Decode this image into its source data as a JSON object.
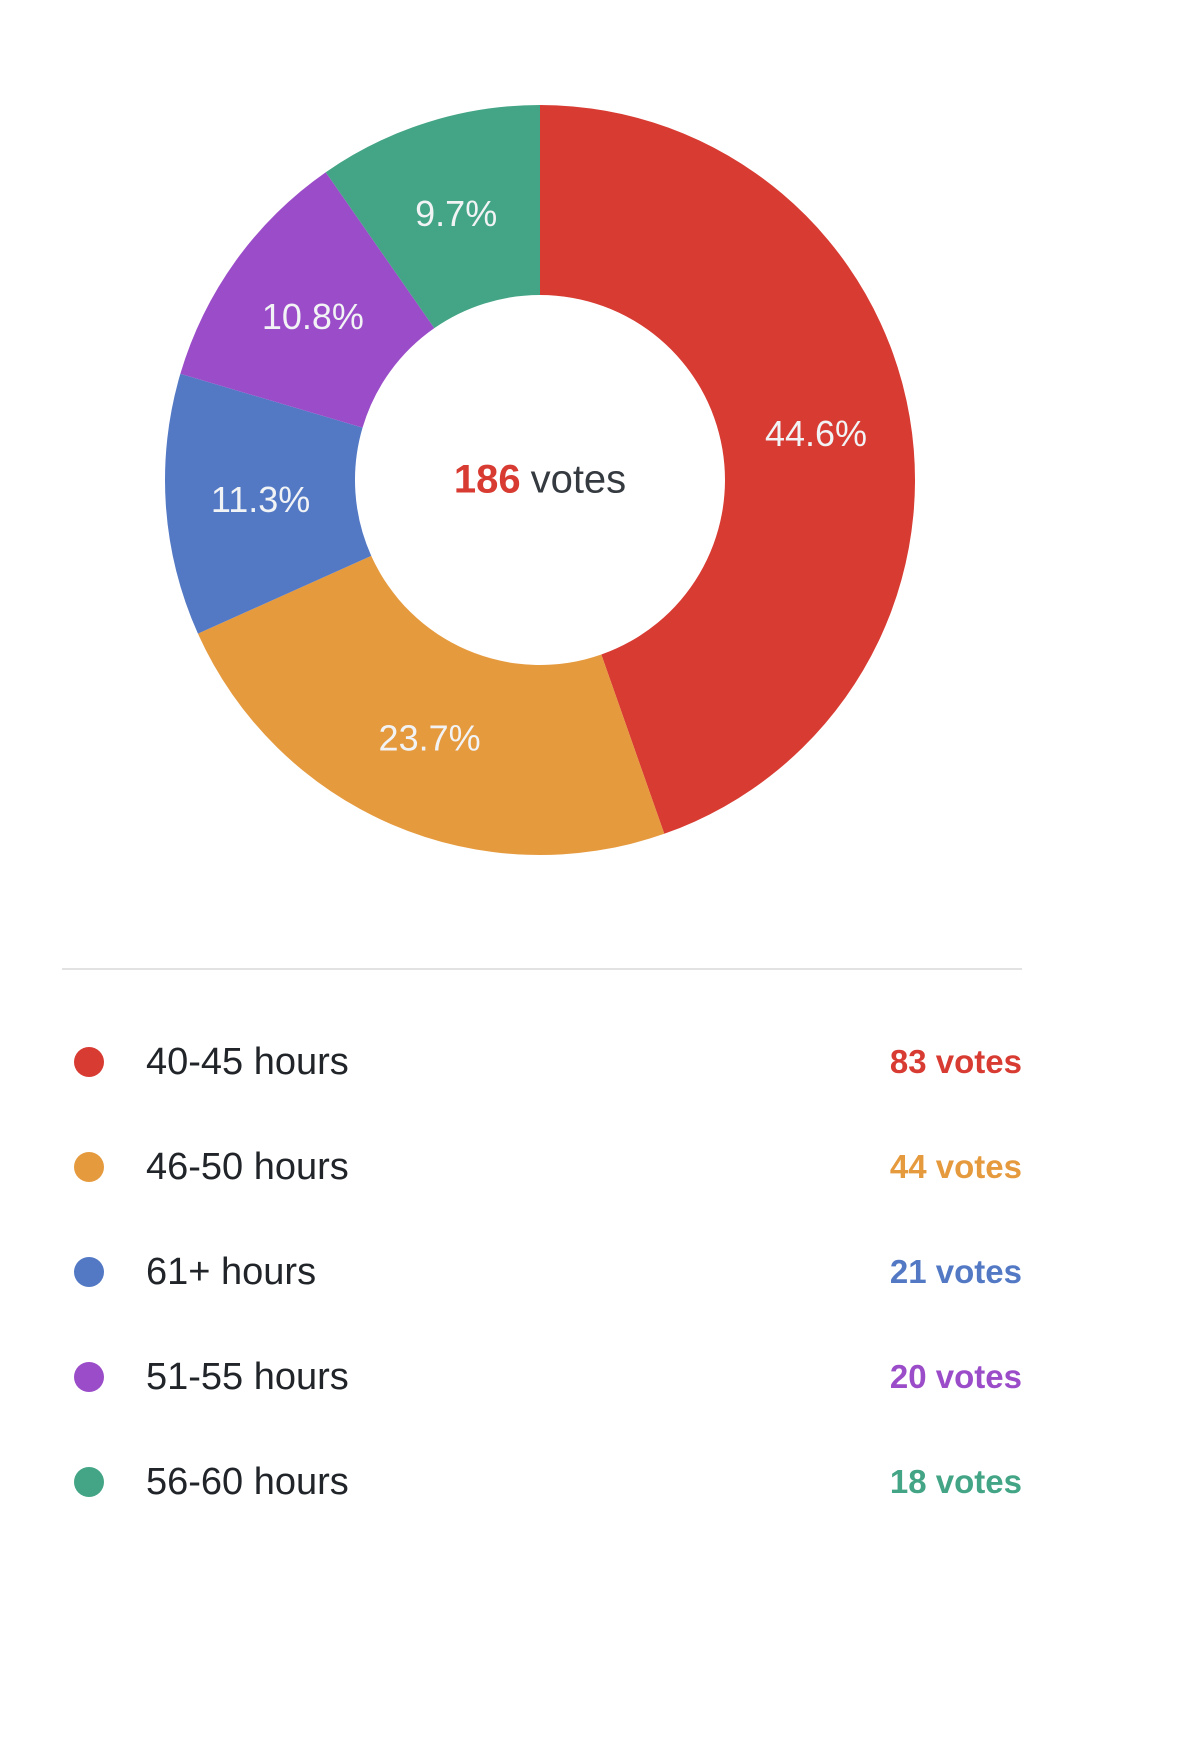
{
  "chart_data": {
    "type": "pie",
    "variant": "donut",
    "legend_position": "bottom",
    "total_votes": 186,
    "center_label": {
      "count": "186",
      "suffix": "votes",
      "count_color": "#d83b32"
    },
    "slices": [
      {
        "label": "40-45 hours",
        "votes": 83,
        "percent": 44.6,
        "percent_label": "44.6%",
        "votes_label": "83 votes",
        "color": "#d83b32"
      },
      {
        "label": "46-50 hours",
        "votes": 44,
        "percent": 23.7,
        "percent_label": "23.7%",
        "votes_label": "44 votes",
        "color": "#e69a3e"
      },
      {
        "label": "61+ hours",
        "votes": 21,
        "percent": 11.3,
        "percent_label": "11.3%",
        "votes_label": "21 votes",
        "color": "#5379c5"
      },
      {
        "label": "51-55 hours",
        "votes": 20,
        "percent": 10.8,
        "percent_label": "10.8%",
        "votes_label": "20 votes",
        "color": "#9b4cc8"
      },
      {
        "label": "56-60 hours",
        "votes": 18,
        "percent": 9.7,
        "percent_label": "9.7%",
        "votes_label": "18 votes",
        "color": "#43a585"
      }
    ]
  }
}
